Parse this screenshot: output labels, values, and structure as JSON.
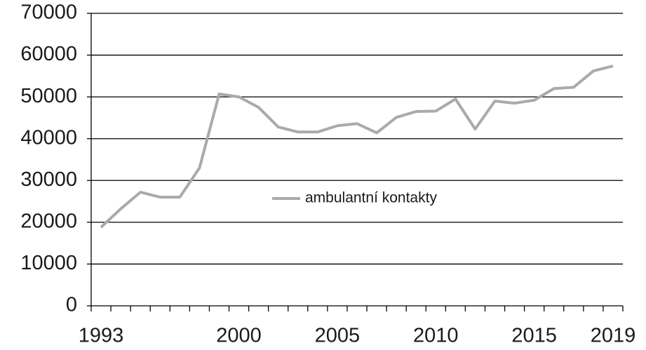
{
  "chart_data": {
    "type": "line",
    "categories": [
      "1993",
      null,
      null,
      null,
      null,
      null,
      null,
      "2000",
      null,
      null,
      null,
      null,
      "2005",
      null,
      null,
      null,
      null,
      "2010",
      null,
      null,
      null,
      null,
      "2015",
      null,
      null,
      null,
      "2019"
    ],
    "series": [
      {
        "name": "ambulantní kontakty",
        "color": "#aaaaaa",
        "values": [
          18800,
          23200,
          27200,
          26000,
          26000,
          33000,
          50700,
          50000,
          47500,
          42800,
          41600,
          41600,
          43100,
          43600,
          41400,
          45100,
          46500,
          46600,
          49500,
          42300,
          49000,
          48500,
          49200,
          52000,
          52300,
          56200,
          57400
        ]
      }
    ],
    "ylim": [
      0,
      70000
    ],
    "yticks": [
      0,
      10000,
      20000,
      30000,
      40000,
      50000,
      60000,
      70000
    ],
    "grid": true,
    "legend": "center"
  }
}
